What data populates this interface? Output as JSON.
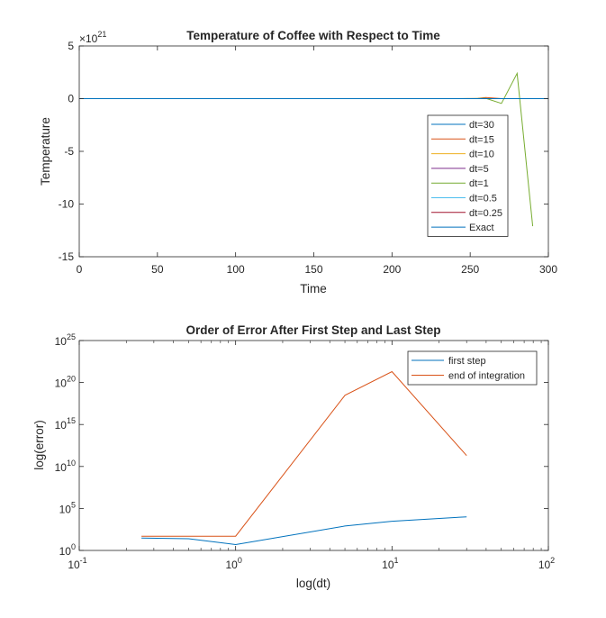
{
  "chart_data": [
    {
      "type": "line",
      "title": "Temperature of Coffee with Respect to Time",
      "xlabel": "Time",
      "ylabel": "Temperature",
      "xlim": [
        0,
        300
      ],
      "ylim": [
        -15,
        5
      ],
      "y_exponent_label": "×10",
      "y_exponent": "21",
      "xticks": [
        0,
        50,
        100,
        150,
        200,
        250,
        300
      ],
      "xtick_labels": [
        "0",
        "50",
        "100",
        "150",
        "200",
        "250",
        "300"
      ],
      "yticks": [
        -15,
        -10,
        -5,
        0,
        5
      ],
      "ytick_labels": [
        "-15",
        "-10",
        "-5",
        "0",
        "5"
      ],
      "grid": false,
      "legend_placement": "right",
      "series": [
        {
          "name": "dt=30",
          "color": "#0072BD",
          "x": [
            0,
            30,
            60,
            90,
            120,
            150,
            180,
            210,
            240,
            270,
            300
          ],
          "y": [
            0,
            0,
            0,
            0,
            0,
            0,
            0,
            0,
            0,
            0,
            0
          ]
        },
        {
          "name": "dt=15",
          "color": "#D95319",
          "x": [
            0,
            60,
            120,
            180,
            240,
            255,
            260,
            270,
            285,
            300
          ],
          "y": [
            0,
            0,
            0,
            0,
            0,
            0.02,
            0.1,
            0,
            0,
            0
          ]
        },
        {
          "name": "dt=10",
          "color": "#EDB120",
          "x": [
            0,
            100,
            200,
            250,
            260,
            270,
            290
          ],
          "y": [
            0,
            0,
            0,
            0,
            0,
            0,
            0
          ]
        },
        {
          "name": "dt=5",
          "color": "#7E2F8E",
          "x": [
            0,
            100,
            200,
            250,
            290
          ],
          "y": [
            0,
            0,
            0,
            0,
            0
          ]
        },
        {
          "name": "dt=1",
          "color": "#77AC30",
          "x": [
            0,
            100,
            200,
            250,
            260,
            270,
            280,
            290
          ],
          "y": [
            0,
            0,
            0,
            0,
            0.03,
            -0.45,
            2.4,
            -12.1
          ]
        },
        {
          "name": "dt=0.5",
          "color": "#4DBEEE",
          "x": [
            0,
            100,
            200,
            250,
            299
          ],
          "y": [
            0,
            0,
            0,
            0,
            0
          ]
        },
        {
          "name": "dt=0.25",
          "color": "#A2142F",
          "x": [
            0,
            100,
            200,
            250,
            300
          ],
          "y": [
            0,
            0,
            0,
            0,
            0
          ]
        },
        {
          "name": "Exact",
          "color": "#0072BD",
          "x": [
            0,
            100,
            200,
            300
          ],
          "y": [
            0,
            0,
            0,
            0
          ]
        }
      ]
    },
    {
      "type": "line",
      "title": "Order of Error After First Step and Last Step",
      "xlabel": "log(dt)",
      "ylabel": "log(error)",
      "xscale": "log",
      "yscale": "log",
      "xlim": [
        0.1,
        100
      ],
      "ylim": [
        1,
        1e+25
      ],
      "x_tick_base": "10",
      "xtick_exponents": [
        "-1",
        "0",
        "1",
        "2"
      ],
      "y_tick_base": "10",
      "ytick_exponents": [
        "0",
        "5",
        "10",
        "15",
        "20",
        "25"
      ],
      "grid": false,
      "legend_placement": "top-right",
      "series": [
        {
          "name": "first step",
          "color": "#0072BD",
          "x": [
            0.25,
            0.5,
            1,
            5,
            10,
            30
          ],
          "y": [
            30,
            25,
            5,
            800,
            3000,
            10000
          ]
        },
        {
          "name": "end of integration",
          "color": "#D95319",
          "x": [
            0.25,
            0.5,
            1,
            5,
            10,
            30
          ],
          "y": [
            50,
            50,
            50,
            3e+18,
            2e+21,
            200000000000.0
          ]
        }
      ]
    }
  ]
}
